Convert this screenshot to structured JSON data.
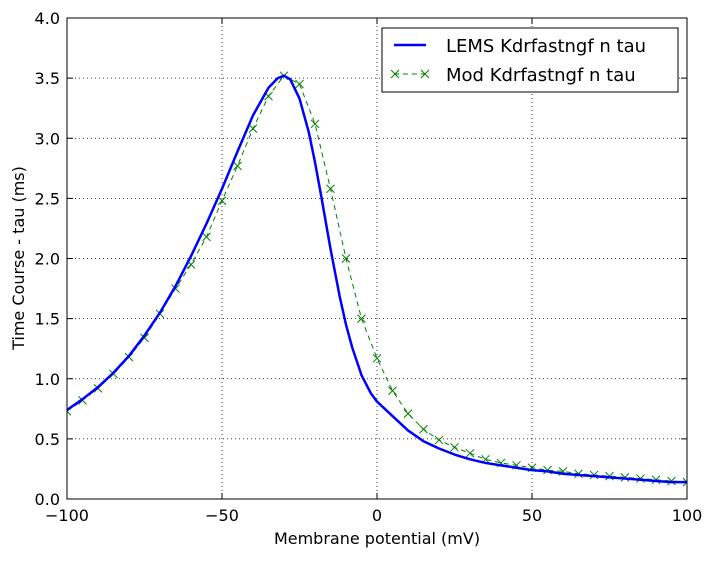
{
  "chart_data": {
    "type": "line",
    "title": "",
    "xlabel": "Membrane potential (mV)",
    "ylabel": "Time Course - tau (ms)",
    "xlim": [
      -100,
      100
    ],
    "ylim": [
      0.0,
      4.0
    ],
    "grid": true,
    "legend_position": "top-right",
    "x_ticks": [
      {
        "value": -100,
        "label": "−100"
      },
      {
        "value": -50,
        "label": "−50"
      },
      {
        "value": 0,
        "label": "0"
      },
      {
        "value": 50,
        "label": "50"
      },
      {
        "value": 100,
        "label": "100"
      }
    ],
    "y_ticks": [
      {
        "value": 0.0,
        "label": "0.0"
      },
      {
        "value": 0.5,
        "label": "0.5"
      },
      {
        "value": 1.0,
        "label": "1.0"
      },
      {
        "value": 1.5,
        "label": "1.5"
      },
      {
        "value": 2.0,
        "label": "2.0"
      },
      {
        "value": 2.5,
        "label": "2.5"
      },
      {
        "value": 3.0,
        "label": "3.0"
      },
      {
        "value": 3.5,
        "label": "3.5"
      },
      {
        "value": 4.0,
        "label": "4.0"
      }
    ],
    "series": [
      {
        "name": "LEMS Kdrfastngf n tau",
        "color": "#0000ff",
        "style": "solid",
        "marker": "none",
        "x": [
          -100,
          -95,
          -90,
          -85,
          -80,
          -75,
          -70,
          -65,
          -60,
          -55,
          -50,
          -45,
          -40,
          -35,
          -32,
          -30,
          -28,
          -25,
          -22,
          -20,
          -18,
          -15,
          -12,
          -10,
          -8,
          -5,
          -2,
          0,
          5,
          10,
          15,
          20,
          25,
          30,
          35,
          40,
          45,
          50,
          55,
          60,
          65,
          70,
          75,
          80,
          85,
          90,
          95,
          100
        ],
        "y": [
          0.74,
          0.83,
          0.93,
          1.05,
          1.19,
          1.36,
          1.55,
          1.77,
          2.02,
          2.29,
          2.58,
          2.89,
          3.19,
          3.42,
          3.5,
          3.52,
          3.49,
          3.33,
          3.05,
          2.8,
          2.52,
          2.08,
          1.68,
          1.45,
          1.26,
          1.03,
          0.88,
          0.81,
          0.69,
          0.57,
          0.48,
          0.42,
          0.37,
          0.33,
          0.3,
          0.28,
          0.26,
          0.24,
          0.23,
          0.21,
          0.2,
          0.19,
          0.18,
          0.17,
          0.16,
          0.15,
          0.14,
          0.14
        ]
      },
      {
        "name": "Mod Kdrfastngf n tau",
        "color": "#008000",
        "style": "dashed",
        "marker": "x",
        "x": [
          -100,
          -95,
          -90,
          -85,
          -80,
          -75,
          -70,
          -65,
          -60,
          -55,
          -50,
          -45,
          -40,
          -35,
          -30,
          -25,
          -20,
          -15,
          -10,
          -5,
          0,
          5,
          10,
          15,
          20,
          25,
          30,
          35,
          40,
          45,
          50,
          55,
          60,
          65,
          70,
          75,
          80,
          85,
          90,
          95,
          100
        ],
        "y": [
          0.73,
          0.82,
          0.92,
          1.04,
          1.18,
          1.34,
          1.54,
          1.75,
          1.95,
          2.18,
          2.48,
          2.77,
          3.08,
          3.35,
          3.52,
          3.45,
          3.12,
          2.58,
          2.0,
          1.5,
          1.17,
          0.9,
          0.71,
          0.58,
          0.49,
          0.43,
          0.38,
          0.33,
          0.3,
          0.28,
          0.26,
          0.24,
          0.23,
          0.21,
          0.2,
          0.19,
          0.18,
          0.17,
          0.16,
          0.15,
          0.14
        ]
      }
    ]
  }
}
